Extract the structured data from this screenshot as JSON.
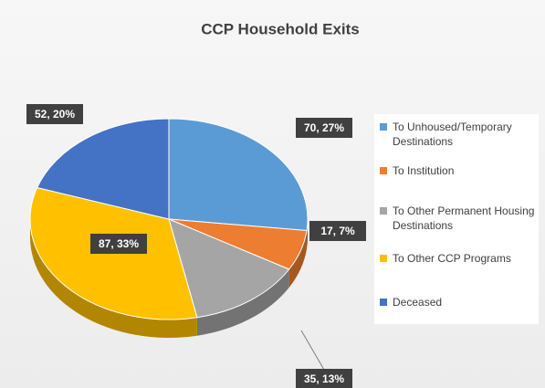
{
  "chart_data": {
    "type": "pie3d",
    "title": "CCP Household Exits",
    "categories": [
      "To Unhoused/Temporary Destinations",
      "To Institution",
      "To Other Permanent Housing Destinations",
      "To Other CCP Programs",
      "Deceased"
    ],
    "values": [
      70,
      17,
      35,
      87,
      52
    ],
    "value_labels": [
      "70, 27%",
      "17, 7%",
      "35, 13%",
      "87, 33%",
      "52, 20%"
    ],
    "colors": [
      "#5b9bd5",
      "#ed7d31",
      "#a5a5a5",
      "#ffc000",
      "#4472c4"
    ],
    "legend": "right"
  }
}
